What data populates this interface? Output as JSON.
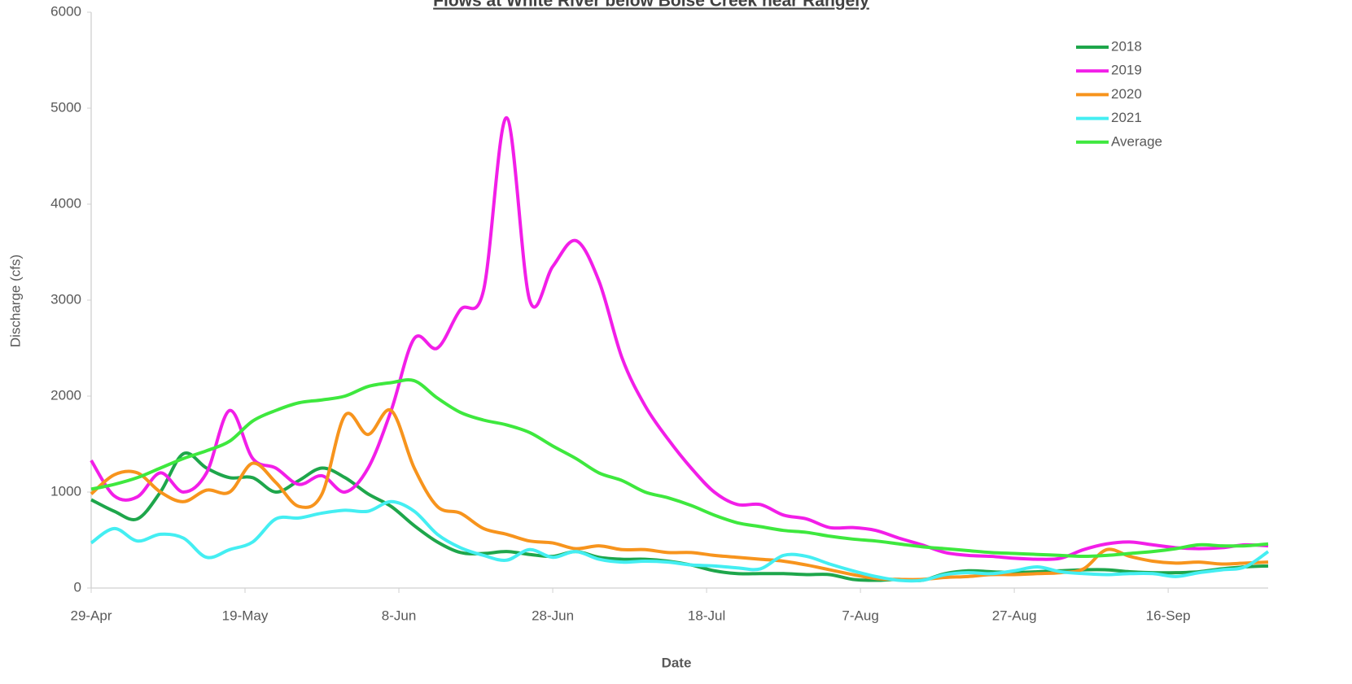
{
  "chart_data": {
    "type": "line",
    "title": "Flows at White River below Boise Creek near Rangely",
    "x_label": "Date",
    "y_label": "Discharge (cfs)",
    "x": [
      "29-Apr",
      "2-May",
      "5-May",
      "8-May",
      "11-May",
      "14-May",
      "17-May",
      "20-May",
      "23-May",
      "26-May",
      "29-May",
      "1-Jun",
      "4-Jun",
      "7-Jun",
      "10-Jun",
      "13-Jun",
      "16-Jun",
      "19-Jun",
      "22-Jun",
      "25-Jun",
      "28-Jun",
      "1-Jul",
      "4-Jul",
      "7-Jul",
      "10-Jul",
      "13-Jul",
      "16-Jul",
      "19-Jul",
      "22-Jul",
      "25-Jul",
      "28-Jul",
      "31-Jul",
      "3-Aug",
      "6-Aug",
      "9-Aug",
      "12-Aug",
      "15-Aug",
      "18-Aug",
      "21-Aug",
      "24-Aug",
      "27-Aug",
      "30-Aug",
      "2-Sep",
      "5-Sep",
      "8-Sep",
      "11-Sep",
      "14-Sep",
      "17-Sep",
      "20-Sep",
      "23-Sep",
      "26-Sep",
      "29-Sep"
    ],
    "xlim": [
      "29-Apr",
      "29-Sep"
    ],
    "xticks": [
      "29-Apr",
      "19-May",
      "8-Jun",
      "28-Jun",
      "18-Jul",
      "7-Aug",
      "27-Aug",
      "16-Sep"
    ],
    "ylim": [
      0,
      6000
    ],
    "yticks": [
      0,
      1000,
      2000,
      3000,
      4000,
      5000,
      6000
    ],
    "grid": false,
    "legend": "upper right",
    "series": [
      {
        "name": "2018",
        "color": "#1ea64b",
        "values": [
          920,
          800,
          720,
          1000,
          1400,
          1250,
          1150,
          1150,
          1000,
          1120,
          1250,
          1150,
          980,
          850,
          650,
          480,
          370,
          360,
          380,
          350,
          330,
          380,
          320,
          300,
          300,
          280,
          240,
          180,
          150,
          150,
          150,
          140,
          140,
          90,
          80,
          90,
          80,
          150,
          180,
          170,
          160,
          170,
          180,
          190,
          190,
          170,
          160,
          160,
          170,
          200,
          220,
          230
        ]
      },
      {
        "name": "2019",
        "color": "#f21ee8",
        "values": [
          1330,
          960,
          950,
          1200,
          1000,
          1200,
          1850,
          1350,
          1250,
          1080,
          1170,
          1000,
          1250,
          1850,
          2600,
          2500,
          2900,
          3100,
          4900,
          3000,
          3350,
          3620,
          3200,
          2400,
          1900,
          1550,
          1250,
          1000,
          870,
          870,
          760,
          720,
          630,
          630,
          600,
          520,
          450,
          370,
          340,
          330,
          310,
          300,
          310,
          400,
          460,
          480,
          450,
          420,
          410,
          420,
          450,
          440
        ]
      },
      {
        "name": "2020",
        "color": "#f7941d",
        "values": [
          980,
          1180,
          1200,
          1000,
          900,
          1020,
          1000,
          1300,
          1100,
          850,
          980,
          1800,
          1600,
          1850,
          1250,
          850,
          780,
          620,
          560,
          490,
          470,
          410,
          440,
          400,
          400,
          370,
          370,
          340,
          320,
          300,
          280,
          240,
          190,
          140,
          100,
          90,
          90,
          110,
          120,
          140,
          140,
          150,
          160,
          200,
          400,
          330,
          280,
          260,
          270,
          250,
          260,
          270
        ]
      },
      {
        "name": "2021",
        "color": "#44eef2",
        "values": [
          470,
          620,
          490,
          560,
          520,
          320,
          400,
          480,
          720,
          730,
          780,
          810,
          800,
          900,
          800,
          560,
          420,
          340,
          290,
          400,
          320,
          380,
          300,
          270,
          280,
          270,
          240,
          230,
          210,
          200,
          340,
          330,
          250,
          180,
          120,
          80,
          80,
          140,
          160,
          150,
          180,
          220,
          170,
          150,
          140,
          150,
          150,
          120,
          160,
          190,
          220,
          380
        ]
      },
      {
        "name": "Average",
        "color": "#3ee83e",
        "values": [
          1030,
          1080,
          1150,
          1250,
          1350,
          1430,
          1530,
          1740,
          1850,
          1930,
          1960,
          2000,
          2100,
          2140,
          2160,
          1980,
          1830,
          1750,
          1700,
          1620,
          1480,
          1350,
          1200,
          1120,
          1000,
          940,
          860,
          760,
          680,
          640,
          600,
          580,
          540,
          510,
          490,
          460,
          430,
          410,
          390,
          370,
          360,
          350,
          340,
          330,
          340,
          360,
          380,
          410,
          450,
          440,
          440,
          460
        ]
      }
    ]
  }
}
